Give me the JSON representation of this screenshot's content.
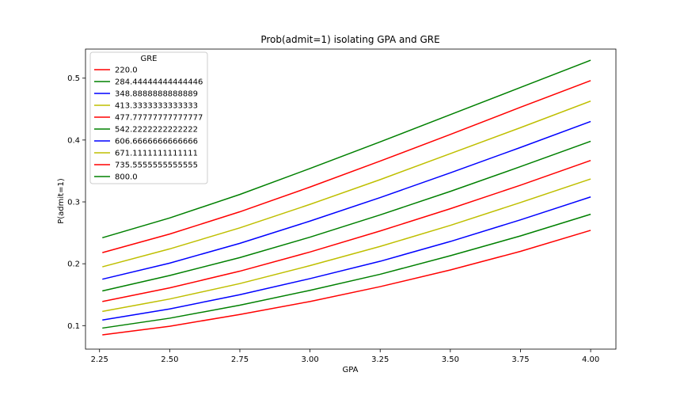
{
  "chart_data": {
    "type": "line",
    "title": "Prob(admit=1) isolating GPA and GRE",
    "xlabel": "GPA",
    "ylabel": "P(admit=1)",
    "xlim": [
      2.2,
      4.09
    ],
    "ylim": [
      0.062,
      0.547
    ],
    "xticks": [
      2.25,
      2.5,
      2.75,
      3.0,
      3.25,
      3.5,
      3.75,
      4.0
    ],
    "xtick_labels": [
      "2.25",
      "2.50",
      "2.75",
      "3.00",
      "3.25",
      "3.50",
      "3.75",
      "4.00"
    ],
    "yticks": [
      0.1,
      0.2,
      0.3,
      0.4,
      0.5
    ],
    "ytick_labels": [
      "0.1",
      "0.2",
      "0.3",
      "0.4",
      "0.5"
    ],
    "grid": false,
    "legend": {
      "title": "GRE",
      "placement": "top-left"
    },
    "x": [
      2.26,
      2.5,
      2.75,
      3.0,
      3.25,
      3.5,
      3.75,
      4.0
    ],
    "series": [
      {
        "name": "220.0",
        "color": "#ff0000",
        "values": [
          0.085,
          0.099,
          0.118,
          0.139,
          0.163,
          0.19,
          0.22,
          0.254
        ]
      },
      {
        "name": "284.44444444444446",
        "color": "#008000",
        "values": [
          0.096,
          0.112,
          0.133,
          0.157,
          0.183,
          0.213,
          0.245,
          0.28
        ]
      },
      {
        "name": "348.8888888888889",
        "color": "#0000ff",
        "values": [
          0.109,
          0.127,
          0.15,
          0.176,
          0.204,
          0.236,
          0.271,
          0.308
        ]
      },
      {
        "name": "413.3333333333333",
        "color": "#bfbf00",
        "values": [
          0.123,
          0.143,
          0.168,
          0.197,
          0.228,
          0.262,
          0.299,
          0.337
        ]
      },
      {
        "name": "477.77777777777777",
        "color": "#ff0000",
        "values": [
          0.139,
          0.161,
          0.188,
          0.219,
          0.253,
          0.289,
          0.327,
          0.367
        ]
      },
      {
        "name": "542.2222222222222",
        "color": "#008000",
        "values": [
          0.156,
          0.181,
          0.21,
          0.243,
          0.279,
          0.317,
          0.357,
          0.398
        ]
      },
      {
        "name": "606.6666666666666",
        "color": "#0000ff",
        "values": [
          0.175,
          0.201,
          0.233,
          0.269,
          0.307,
          0.347,
          0.388,
          0.43
        ]
      },
      {
        "name": "671.1111111111111",
        "color": "#bfbf00",
        "values": [
          0.195,
          0.224,
          0.258,
          0.296,
          0.336,
          0.378,
          0.42,
          0.463
        ]
      },
      {
        "name": "735.5555555555555",
        "color": "#ff0000",
        "values": [
          0.218,
          0.248,
          0.284,
          0.324,
          0.366,
          0.409,
          0.453,
          0.496
        ]
      },
      {
        "name": "800.0",
        "color": "#008000",
        "values": [
          0.242,
          0.274,
          0.312,
          0.354,
          0.397,
          0.441,
          0.485,
          0.529
        ]
      }
    ]
  }
}
